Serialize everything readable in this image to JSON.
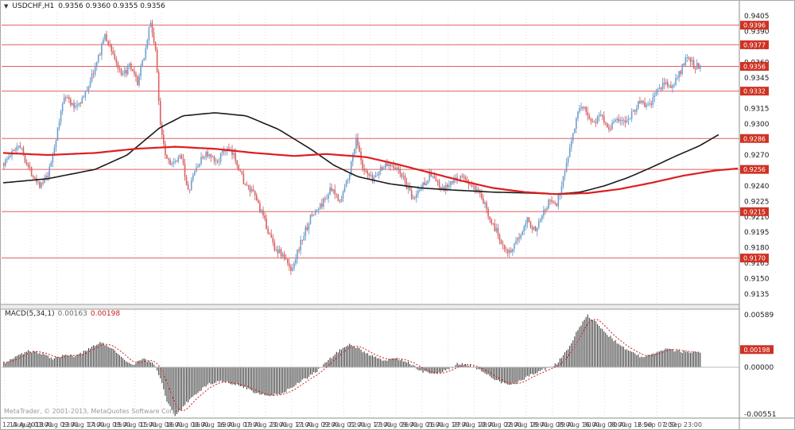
{
  "header": {
    "symbol": "USDCHF,H1",
    "ohlc": "0.9356 0.9360 0.9355 0.9356"
  },
  "icons": {
    "symbol_marker": "▼"
  },
  "colors": {
    "bull": "#6f9fce",
    "bear": "#d96262",
    "ma_black": "#1a1a1a",
    "ma_red": "#dd1f1f",
    "level_line": "#e06060",
    "badge_bg": "#ce3224",
    "badge_text": "#ffffff",
    "hist": "#404040",
    "signal": "#d42020",
    "grid": "#dedede",
    "axis_text": "#1a1a1a",
    "time_text": "#4a4a4a",
    "frame": "#a8a8a8"
  },
  "macd": {
    "label": "MACD(5,34,1)",
    "value_main": "0.00163",
    "value_signal": "0.00198"
  },
  "footer": {
    "copyright": "MetaTrader, © 2001-2013, MetaQuotes Software Corp."
  },
  "chart_data": [
    {
      "type": "candlestick",
      "title": "USDCHF,H1",
      "ohlc_current": {
        "open": 0.9356,
        "high": 0.936,
        "low": 0.9355,
        "close": 0.9356
      },
      "last_close": 0.9356,
      "ylim": [
        0.9135,
        0.9405
      ],
      "y_ticks": [
        "0.9405",
        "0.9390",
        "0.9375",
        "0.9360",
        "0.9345",
        "0.9330",
        "0.9315",
        "0.9300",
        "0.9285",
        "0.9270",
        "0.9255",
        "0.9240",
        "0.9225",
        "0.9210",
        "0.9195",
        "0.9180",
        "0.9165",
        "0.9150",
        "0.9135"
      ],
      "levels": [
        0.9396,
        0.9377,
        0.9356,
        0.9332,
        0.9286,
        0.9256,
        0.9215,
        0.917
      ],
      "level_badges": [
        "0.9396",
        "0.9377",
        "0.9356",
        "0.9332",
        "0.9286",
        "0.9256",
        "0.9215",
        "0.9170"
      ],
      "x_labels": [
        "12 Aug 2013",
        "13 Aug 01:00",
        "13 Aug 09:00",
        "13 Aug 17:00",
        "14 Aug 09:00",
        "15 Aug 01:00",
        "15 Aug 08:00",
        "16 Aug 00:00",
        "16 Aug 16:00",
        "19 Aug 07:00",
        "19 Aug 23:00",
        "20 Aug 17:00",
        "21 Aug 09:00",
        "22 Aug 01:00",
        "22 Aug 17:00",
        "23 Aug 09:00",
        "26 Aug 01:00",
        "26 Aug 18:00",
        "27 Aug 10:00",
        "28 Aug 02:00",
        "28 Aug 18:00",
        "29 Aug 08:00",
        "29 Aug 16:00",
        "30 Aug 08:00",
        "30 Aug 16:00",
        "2 Sep 07:00",
        "2 Sep 23:00"
      ],
      "bars_estimate": 428,
      "close_path": [
        [
          0.0,
          0.9262
        ],
        [
          0.012,
          0.9272
        ],
        [
          0.022,
          0.9282
        ],
        [
          0.035,
          0.9258
        ],
        [
          0.053,
          0.924
        ],
        [
          0.064,
          0.925
        ],
        [
          0.078,
          0.9296
        ],
        [
          0.087,
          0.933
        ],
        [
          0.1,
          0.9316
        ],
        [
          0.115,
          0.9326
        ],
        [
          0.135,
          0.9362
        ],
        [
          0.144,
          0.9386
        ],
        [
          0.155,
          0.9372
        ],
        [
          0.169,
          0.9345
        ],
        [
          0.18,
          0.9356
        ],
        [
          0.192,
          0.934
        ],
        [
          0.204,
          0.9374
        ],
        [
          0.21,
          0.94
        ],
        [
          0.218,
          0.9372
        ],
        [
          0.224,
          0.9305
        ],
        [
          0.233,
          0.9268
        ],
        [
          0.244,
          0.926
        ],
        [
          0.256,
          0.927
        ],
        [
          0.264,
          0.9232
        ],
        [
          0.275,
          0.9256
        ],
        [
          0.29,
          0.9272
        ],
        [
          0.304,
          0.9262
        ],
        [
          0.318,
          0.9276
        ],
        [
          0.332,
          0.9268
        ],
        [
          0.347,
          0.924
        ],
        [
          0.361,
          0.923
        ],
        [
          0.374,
          0.9206
        ],
        [
          0.389,
          0.918
        ],
        [
          0.401,
          0.9172
        ],
        [
          0.412,
          0.9158
        ],
        [
          0.427,
          0.9186
        ],
        [
          0.441,
          0.921
        ],
        [
          0.454,
          0.922
        ],
        [
          0.469,
          0.9236
        ],
        [
          0.484,
          0.9226
        ],
        [
          0.498,
          0.9258
        ],
        [
          0.506,
          0.9288
        ],
        [
          0.515,
          0.9255
        ],
        [
          0.529,
          0.9246
        ],
        [
          0.543,
          0.9258
        ],
        [
          0.557,
          0.9262
        ],
        [
          0.572,
          0.925
        ],
        [
          0.587,
          0.9226
        ],
        [
          0.6,
          0.924
        ],
        [
          0.614,
          0.9252
        ],
        [
          0.629,
          0.9235
        ],
        [
          0.644,
          0.9243
        ],
        [
          0.657,
          0.925
        ],
        [
          0.671,
          0.924
        ],
        [
          0.686,
          0.9228
        ],
        [
          0.701,
          0.9205
        ],
        [
          0.714,
          0.9186
        ],
        [
          0.728,
          0.9174
        ],
        [
          0.74,
          0.919
        ],
        [
          0.751,
          0.921
        ],
        [
          0.762,
          0.9196
        ],
        [
          0.774,
          0.9216
        ],
        [
          0.785,
          0.9226
        ],
        [
          0.794,
          0.9222
        ],
        [
          0.806,
          0.9256
        ],
        [
          0.815,
          0.9286
        ],
        [
          0.824,
          0.931
        ],
        [
          0.834,
          0.9316
        ],
        [
          0.846,
          0.93
        ],
        [
          0.857,
          0.931
        ],
        [
          0.869,
          0.9296
        ],
        [
          0.88,
          0.9306
        ],
        [
          0.891,
          0.93
        ],
        [
          0.903,
          0.9312
        ],
        [
          0.914,
          0.9322
        ],
        [
          0.926,
          0.9316
        ],
        [
          0.937,
          0.933
        ],
        [
          0.949,
          0.934
        ],
        [
          0.96,
          0.9336
        ],
        [
          0.971,
          0.935
        ],
        [
          0.983,
          0.9368
        ],
        [
          0.991,
          0.9356
        ],
        [
          1.0,
          0.9356
        ]
      ],
      "ma_black": [
        [
          0.0,
          0.9243
        ],
        [
          0.064,
          0.9247
        ],
        [
          0.132,
          0.9256
        ],
        [
          0.178,
          0.927
        ],
        [
          0.224,
          0.9296
        ],
        [
          0.258,
          0.9308
        ],
        [
          0.304,
          0.9311
        ],
        [
          0.349,
          0.9308
        ],
        [
          0.395,
          0.9295
        ],
        [
          0.441,
          0.9276
        ],
        [
          0.475,
          0.926
        ],
        [
          0.509,
          0.9249
        ],
        [
          0.555,
          0.9242
        ],
        [
          0.6,
          0.9238
        ],
        [
          0.646,
          0.9236
        ],
        [
          0.703,
          0.9234
        ],
        [
          0.76,
          0.9233
        ],
        [
          0.794,
          0.9232
        ],
        [
          0.829,
          0.9234
        ],
        [
          0.863,
          0.924
        ],
        [
          0.897,
          0.9248
        ],
        [
          0.931,
          0.9258
        ],
        [
          0.966,
          0.9269
        ],
        [
          1.0,
          0.9279
        ],
        [
          1.028,
          0.929
        ]
      ],
      "ma_red": [
        [
          0.0,
          0.9272
        ],
        [
          0.064,
          0.927
        ],
        [
          0.132,
          0.9272
        ],
        [
          0.19,
          0.9276
        ],
        [
          0.247,
          0.9278
        ],
        [
          0.304,
          0.9276
        ],
        [
          0.361,
          0.9272
        ],
        [
          0.418,
          0.9269
        ],
        [
          0.463,
          0.9271
        ],
        [
          0.521,
          0.9268
        ],
        [
          0.566,
          0.9261
        ],
        [
          0.612,
          0.9253
        ],
        [
          0.658,
          0.9245
        ],
        [
          0.703,
          0.9238
        ],
        [
          0.749,
          0.9234
        ],
        [
          0.794,
          0.9232
        ],
        [
          0.84,
          0.9233
        ],
        [
          0.886,
          0.9237
        ],
        [
          0.931,
          0.9243
        ],
        [
          0.977,
          0.925
        ],
        [
          1.023,
          0.9255
        ],
        [
          1.057,
          0.9257
        ]
      ]
    },
    {
      "type": "bar",
      "title": "MACD(5,34,1)",
      "current_values": [
        0.00163,
        0.00198
      ],
      "ylim": [
        -0.00551,
        0.00589
      ],
      "y_ticks": [
        "0.00589",
        "0.00000",
        "-0.00551"
      ],
      "y_badge": "0.00198",
      "histogram_path": [
        [
          0.0,
          0.0005
        ],
        [
          0.018,
          0.0012
        ],
        [
          0.035,
          0.0018
        ],
        [
          0.053,
          0.0016
        ],
        [
          0.07,
          0.001
        ],
        [
          0.087,
          0.0014
        ],
        [
          0.104,
          0.0012
        ],
        [
          0.121,
          0.002
        ],
        [
          0.138,
          0.0028
        ],
        [
          0.155,
          0.0022
        ],
        [
          0.172,
          0.0008
        ],
        [
          0.184,
          0.0002
        ],
        [
          0.199,
          0.001
        ],
        [
          0.215,
          0.0004
        ],
        [
          0.224,
          -0.001
        ],
        [
          0.235,
          -0.004
        ],
        [
          0.247,
          -0.0055
        ],
        [
          0.26,
          -0.0042
        ],
        [
          0.275,
          -0.003
        ],
        [
          0.292,
          -0.002
        ],
        [
          0.309,
          -0.0015
        ],
        [
          0.327,
          -0.0018
        ],
        [
          0.344,
          -0.0022
        ],
        [
          0.361,
          -0.0028
        ],
        [
          0.381,
          -0.0032
        ],
        [
          0.397,
          -0.003
        ],
        [
          0.415,
          -0.0022
        ],
        [
          0.435,
          -0.0012
        ],
        [
          0.452,
          -0.0003
        ],
        [
          0.466,
          0.0008
        ],
        [
          0.484,
          0.002
        ],
        [
          0.498,
          0.0026
        ],
        [
          0.511,
          0.002
        ],
        [
          0.53,
          0.0012
        ],
        [
          0.546,
          0.0008
        ],
        [
          0.564,
          0.001
        ],
        [
          0.58,
          0.0006
        ],
        [
          0.598,
          -0.0004
        ],
        [
          0.617,
          -0.0008
        ],
        [
          0.635,
          -0.0004
        ],
        [
          0.652,
          0.0004
        ],
        [
          0.669,
          0.0003
        ],
        [
          0.686,
          -0.0004
        ],
        [
          0.705,
          -0.0014
        ],
        [
          0.724,
          -0.002
        ],
        [
          0.74,
          -0.0016
        ],
        [
          0.758,
          -0.0008
        ],
        [
          0.777,
          -0.0002
        ],
        [
          0.794,
          0.0004
        ],
        [
          0.812,
          0.0022
        ],
        [
          0.826,
          0.0045
        ],
        [
          0.838,
          0.0058
        ],
        [
          0.851,
          0.005
        ],
        [
          0.865,
          0.0038
        ],
        [
          0.88,
          0.0028
        ],
        [
          0.897,
          0.0018
        ],
        [
          0.914,
          0.0012
        ],
        [
          0.931,
          0.0014
        ],
        [
          0.952,
          0.002
        ],
        [
          0.971,
          0.0018
        ],
        [
          0.988,
          0.0016
        ],
        [
          1.0,
          0.00163
        ]
      ]
    }
  ]
}
